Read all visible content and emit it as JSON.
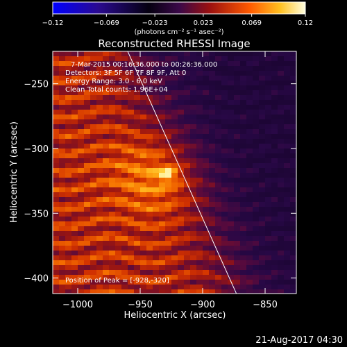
{
  "chart_data": {
    "type": "heatmap",
    "title": "Reconstructed RHESSI Image",
    "xlabel": "Heliocentric X (arcsec)",
    "ylabel": "Heliocentric Y (arcsec)",
    "xlim": [
      -1020,
      -825
    ],
    "ylim": [
      -412,
      -225
    ],
    "xticks": [
      -1000,
      -950,
      -900,
      -850
    ],
    "yticks": [
      -250,
      -300,
      -350,
      -400
    ],
    "xtick_labels": [
      "−1000",
      "−950",
      "−900",
      "−850"
    ],
    "ytick_labels": [
      "−250",
      "−300",
      "−350",
      "−400"
    ],
    "colorbar": {
      "min": -0.12,
      "max": 0.12,
      "tick_values": [
        -0.12,
        -0.069,
        -0.023,
        0.023,
        0.069,
        0.12
      ],
      "tick_labels": [
        "−0.12",
        "−0.069",
        "−0.023",
        "0.023",
        "0.069",
        "0.12"
      ],
      "units": "(photons cm⁻² s⁻¹ asec⁻²)"
    },
    "annotations": {
      "time_range": "7-Mar-2015 00:16:36.000 to 00:26:36.000",
      "detectors": "Detectors: 3F 5F 6F 7F 8F 9F, Att 0",
      "energy": "Energy Range: 3.0 - 6.0 keV",
      "method": "Clean     Total counts: 1.96E+04",
      "peak": "Position of Peak = [-928,-320]"
    },
    "peak": {
      "x": -928,
      "y": -320
    },
    "limb_line": {
      "x_top": -960,
      "y_top": -225,
      "x_bottom": -873,
      "y_bottom": -412
    }
  },
  "footer": {
    "date": "21-Aug-2017 04:30"
  },
  "colors": {
    "background": "#000000",
    "text": "#ffffff",
    "colormap": [
      "#0000ff",
      "#1a0a6a",
      "#000000",
      "#5a0a5a",
      "#9a1010",
      "#e03000",
      "#ff8a00",
      "#ffd040",
      "#ffffff"
    ]
  }
}
